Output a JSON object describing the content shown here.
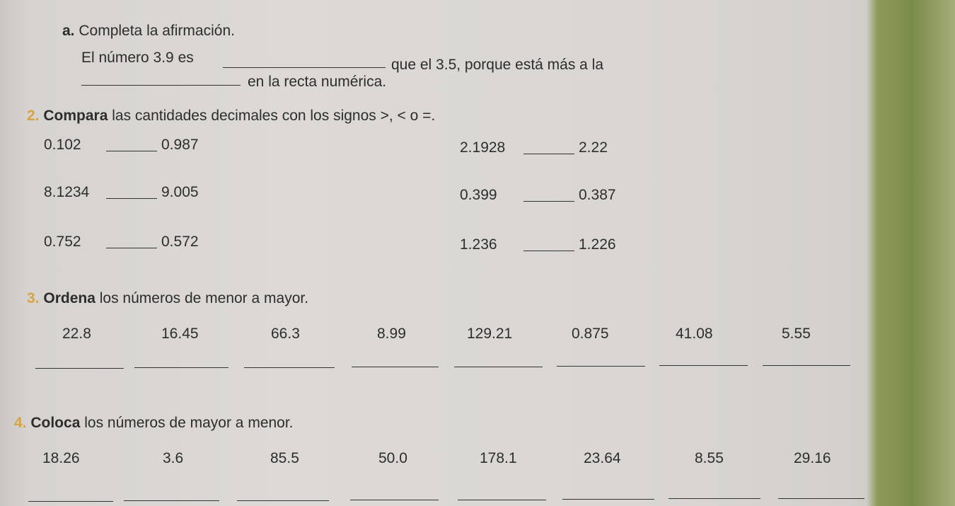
{
  "part_a": {
    "label": "a.",
    "title": "Completa la afirmación.",
    "line1_start": "El número 3.9 es",
    "line1_end": "que el 3.5, porque está más a la",
    "line2_end": "en la recta numérica."
  },
  "exercise2": {
    "number": "2.",
    "verb": "Compara",
    "rest": "las cantidades decimales con los signos >, < o =.",
    "pairs": [
      [
        "0.102",
        "0.987"
      ],
      [
        "2.1928",
        "2.22"
      ],
      [
        "8.1234",
        "9.005"
      ],
      [
        "0.399",
        "0.387"
      ],
      [
        "0.752",
        "0.572"
      ],
      [
        "1.236",
        "1.226"
      ]
    ]
  },
  "exercise3": {
    "number": "3.",
    "verb": "Ordena",
    "rest": "los números de menor a mayor.",
    "numbers": [
      "22.8",
      "16.45",
      "66.3",
      "8.99",
      "129.21",
      "0.875",
      "41.08",
      "5.55"
    ]
  },
  "exercise4": {
    "number": "4.",
    "verb": "Coloca",
    "rest": "los números de mayor a menor.",
    "numbers": [
      "18.26",
      "3.6",
      "85.5",
      "50.0",
      "178.1",
      "23.64",
      "8.55",
      "29.16"
    ]
  },
  "colors": {
    "number_accent": "#d9a441",
    "paper": "#dcd9d6"
  }
}
